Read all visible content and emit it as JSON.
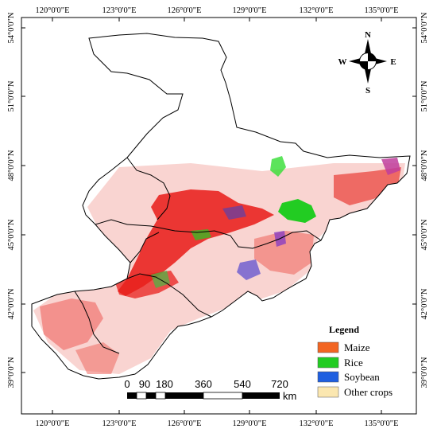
{
  "map": {
    "axes": {
      "top": [
        "120°0'0\"E",
        "123°0'0\"E",
        "126°0'0\"E",
        "129°0'0\"E",
        "132°0'0\"E",
        "135°0'0\"E"
      ],
      "bottom": [
        "120°0'0\"E",
        "123°0'0\"E",
        "126°0'0\"E",
        "129°0'0\"E",
        "132°0'0\"E",
        "135°0'0\"E"
      ],
      "left": [
        "54°0'0\"N",
        "51°0'0\"N",
        "48°0'0\"N",
        "45°0'0\"N",
        "42°0'0\"N",
        "39°0'0\"N"
      ],
      "right": [
        "54°0'0\"N",
        "51°0'0\"N",
        "48°0'0\"N",
        "45°0'0\"N",
        "42°0'0\"N",
        "39°0'0\"N"
      ]
    },
    "compass": {
      "north": "N",
      "south": "S",
      "east": "E",
      "west": "W"
    },
    "legend": {
      "title": "Legend",
      "items": [
        {
          "label": "Maize",
          "color": "#f26522"
        },
        {
          "label": "Rice",
          "color": "#22cc22"
        },
        {
          "label": "Soybean",
          "color": "#1f5fe0"
        },
        {
          "label": "Other crops",
          "color": "#fbe7b0"
        }
      ]
    },
    "scale_bar": {
      "labels": [
        "0",
        "90",
        "180",
        "360",
        "540",
        "720"
      ],
      "unit": "km"
    },
    "colors": {
      "maize_dense": "#e8201c",
      "maize_sparse": "#f29a95",
      "rice": "#22cc22",
      "soybean": "#3344cc",
      "other": "#c03d9c",
      "boundary": "#000000"
    }
  }
}
